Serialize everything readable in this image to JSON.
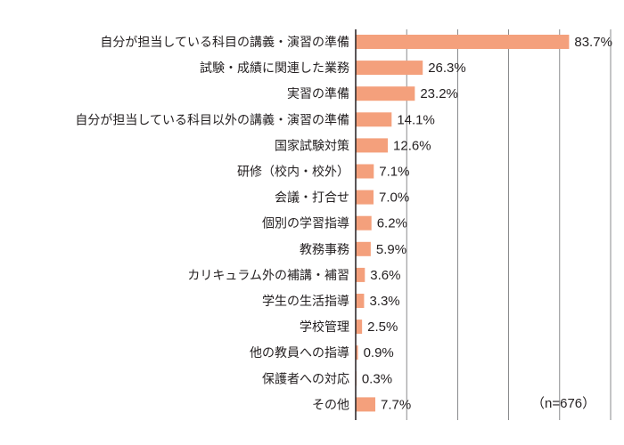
{
  "chart_data": {
    "type": "bar",
    "orientation": "horizontal",
    "categories": [
      "自分が担当している科目の講義・演習の準備",
      "試験・成績に関連した業務",
      "実習の準備",
      "自分が担当している科目以外の講義・演習の準備",
      "国家試験対策",
      "研修（校内・校外）",
      "会議・打合せ",
      "個別の学習指導",
      "教務事務",
      "カリキュラム外の補講・補習",
      "学生の生活指導",
      "学校管理",
      "他の教員への指導",
      "保護者への対応",
      "その他"
    ],
    "values": [
      83.7,
      26.3,
      23.2,
      14.1,
      12.6,
      7.1,
      7.0,
      6.2,
      5.9,
      3.6,
      3.3,
      2.5,
      0.9,
      0.3,
      7.7
    ],
    "value_labels": [
      "83.7%",
      "26.3%",
      "23.2%",
      "14.1%",
      "12.6%",
      "7.1%",
      "7.0%",
      "6.2%",
      "5.9%",
      "3.6%",
      "3.3%",
      "2.5%",
      "0.9%",
      "0.3%",
      "7.7%"
    ],
    "xlim": [
      0,
      100
    ],
    "grid": true,
    "bar_color": "#f4a07c",
    "note": "（n=676）"
  }
}
